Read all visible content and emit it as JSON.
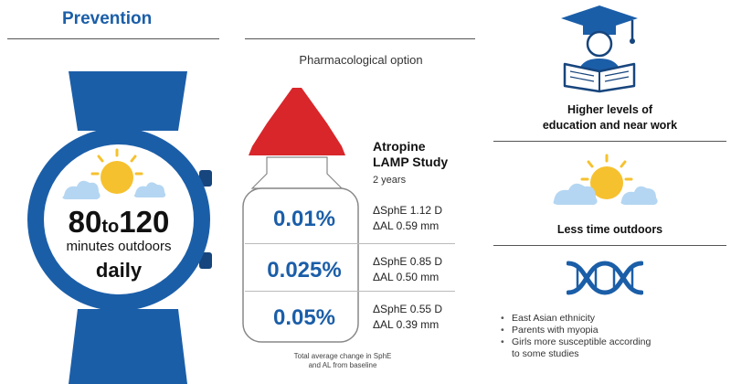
{
  "prevention": {
    "title": "Prevention",
    "range_from": "80",
    "range_to_word": "to",
    "range_to": "120",
    "line2": "minutes outdoors",
    "line3": "daily",
    "watch_icon": "wristwatch-icon",
    "weather_icon": "sun-cloud-icon"
  },
  "pharmacological": {
    "title": "Pharmacological option",
    "bottle_icon": "eye-drop-bottle-icon",
    "study_title": "Atropine LAMP Study",
    "study_title_line1": "Atropine",
    "study_title_line2": "LAMP Study",
    "study_duration": "2 years",
    "rows": [
      {
        "concentration": "0.01%",
        "sphe": "ΔSphE 1.12 D",
        "al": "ΔAL 0.59 mm"
      },
      {
        "concentration": "0.025%",
        "sphe": "ΔSphE 0.85 D",
        "al": "ΔAL 0.50 mm"
      },
      {
        "concentration": "0.05%",
        "sphe": "ΔSphE 0.55 D",
        "al": "ΔAL 0.39 mm"
      }
    ],
    "footnote_line1": "Total average change in SphE",
    "footnote_line2": "and AL from baseline"
  },
  "risk_factors": {
    "education": {
      "icon": "graduate-reading-icon",
      "line1": "Higher levels of",
      "line2": "education and near work"
    },
    "outdoors": {
      "icon": "sun-cloud-icon",
      "label": "Less time outdoors"
    },
    "genetics": {
      "icon": "dna-helix-icon",
      "bullets": [
        "East Asian ethnicity",
        "Parents with myopia",
        "Girls more susceptible according",
        "to some studies"
      ]
    }
  },
  "colors": {
    "brand_blue": "#1b5ea8",
    "dark_blue": "#17457d",
    "cap_red": "#d8262a",
    "sun_yellow": "#f6c12e",
    "cloud_blue": "#b4d6f2"
  }
}
